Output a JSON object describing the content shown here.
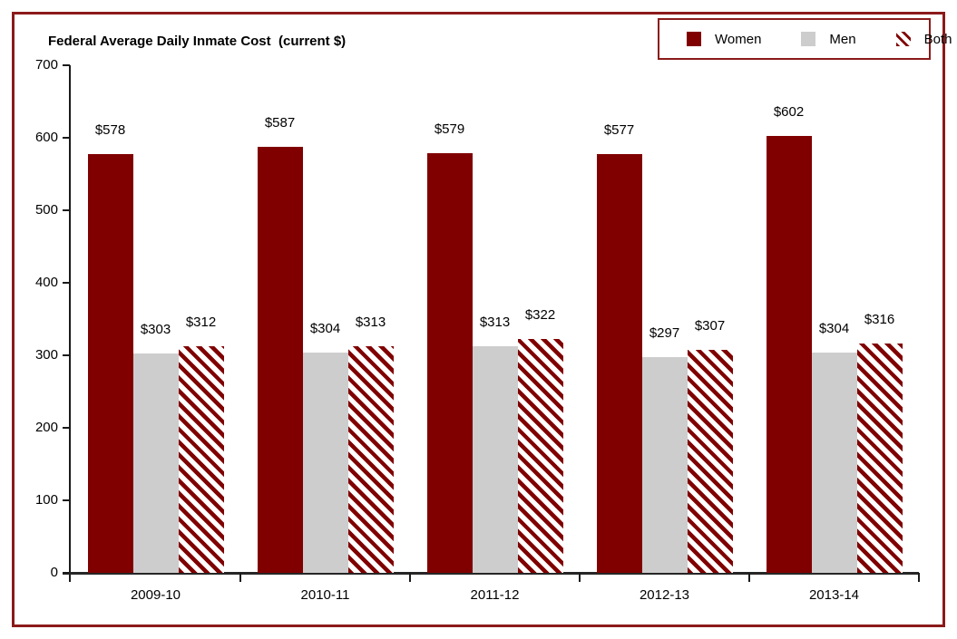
{
  "chart_data": {
    "type": "bar",
    "title": "Federal Average Daily Inmate Cost  (current $)",
    "categories": [
      "2009-10",
      "2010-11",
      "2011-12",
      "2012-13",
      "2013-14"
    ],
    "series": [
      {
        "name": "Women",
        "color": "#800000",
        "pattern": "solid",
        "values": [
          578,
          587,
          579,
          577,
          602
        ]
      },
      {
        "name": "Men",
        "color": "#CDCDCD",
        "pattern": "solid",
        "values": [
          303,
          304,
          313,
          297,
          304
        ]
      },
      {
        "name": "Both",
        "color": "#800000",
        "pattern": "diagonal-hatch",
        "values": [
          312,
          313,
          322,
          307,
          316
        ]
      }
    ],
    "data_labels": [
      [
        "$578",
        "$587",
        "$579",
        "$577",
        "$602"
      ],
      [
        "$303",
        "$304",
        "$313",
        "$297",
        "$304"
      ],
      [
        "$312",
        "$313",
        "$322",
        "$307",
        "$316"
      ]
    ],
    "data_label_prefix": "$",
    "xlabel": "",
    "ylabel": "",
    "ylim": [
      0,
      700
    ],
    "yticks": [
      0,
      100,
      200,
      300,
      400,
      500,
      600,
      700
    ],
    "grid": false,
    "legend_position": "top-right"
  },
  "colors": {
    "frame_border": "#8B1A1A",
    "axis": "#1A1A1A",
    "women_bar": "#800000",
    "men_bar": "#CDCDCD",
    "hatch_stripe": "#800000",
    "background": "#FFFFFF"
  }
}
